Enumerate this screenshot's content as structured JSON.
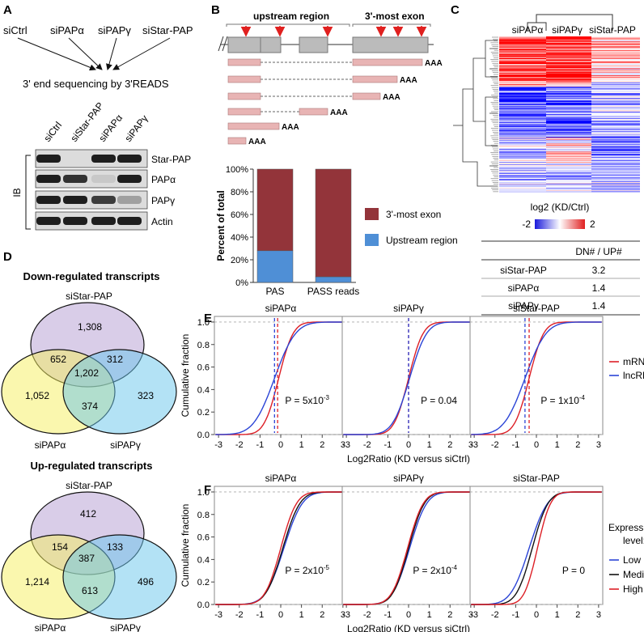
{
  "panels": {
    "A": "A",
    "B": "B",
    "C": "C",
    "D": "D",
    "E": "E",
    "F": "F"
  },
  "colors": {
    "red": "#dd1f26",
    "blue": "#2b44d6",
    "black": "#111111",
    "exon_dark": "#93343a",
    "upstream_blue": "#4f8fd6",
    "venn_purple": "#b9a4d6",
    "venn_yellow": "#faf59a",
    "venn_blue": "#8ed3ef",
    "pink_bar": "#e8b4b4",
    "gel_gray": "#888888"
  },
  "panel_a": {
    "conditions": [
      "siCtrl",
      "siPAPα",
      "siPAPγ",
      "siStar-PAP"
    ],
    "method": "3' end sequencing by 3'READS",
    "blot_lanes": [
      "siCtrl",
      "siStar-PAP",
      "siPAPα",
      "siPAPγ"
    ],
    "blot_rows": [
      "Star-PAP",
      "PAPα",
      "PAPγ",
      "Actin"
    ],
    "ib_label": "IB",
    "band_intensity": [
      [
        1,
        0.05,
        1,
        1
      ],
      [
        1,
        0.9,
        0.15,
        1
      ],
      [
        1,
        1,
        0.85,
        0.35
      ],
      [
        1,
        1,
        1,
        1
      ]
    ]
  },
  "panel_b": {
    "upstream_label": "upstream region",
    "exon_label": "3'-most exon",
    "polya": "AAA",
    "bar_chart": {
      "type": "bar",
      "stacked": true,
      "categories": [
        "PAS",
        "PASS reads"
      ],
      "ylabel": "Percent of total",
      "yticks": [
        "0%",
        "20%",
        "40%",
        "60%",
        "80%",
        "100%"
      ],
      "ylim": [
        0,
        100
      ],
      "series": [
        {
          "name": "Upstream region",
          "values": [
            28,
            5
          ]
        },
        {
          "name": "3'-most exon",
          "values": [
            72,
            95
          ]
        }
      ]
    }
  },
  "panel_c": {
    "columns": [
      "siPAPα",
      "siPAPγ",
      "siStar-PAP"
    ],
    "legend_title": "log2 (KD/Ctrl)",
    "legend_min": "-2",
    "legend_max": "2",
    "table_header": "DN# / UP#",
    "table_rows": [
      {
        "name": "siStar-PAP",
        "value": "3.2"
      },
      {
        "name": "siPAPα",
        "value": "1.4"
      },
      {
        "name": "siPAPγ",
        "value": "1.4"
      }
    ]
  },
  "panel_d": {
    "down": {
      "title": "Down-regulated transcripts",
      "top": "siStar-PAP",
      "left": "siPAPα",
      "right": "siPAPγ",
      "star_only": "1,308",
      "alpha_only": "1,052",
      "gamma_only": "323",
      "star_alpha": "652",
      "star_gamma": "312",
      "alpha_gamma": "374",
      "all": "1,202"
    },
    "up": {
      "title": "Up-regulated transcripts",
      "top": "siStar-PAP",
      "left": "siPAPα",
      "right": "siPAPγ",
      "star_only": "412",
      "alpha_only": "1,214",
      "gamma_only": "496",
      "star_alpha": "154",
      "star_gamma": "133",
      "alpha_gamma": "613",
      "all": "387"
    }
  },
  "chart_data": [
    {
      "type": "line",
      "panel": "E",
      "titles": [
        "siPAPα",
        "siPAPγ",
        "siStar-PAP"
      ],
      "xlabel": "Log2Ratio (KD versus siCtrl)",
      "ylabel": "Cumulative fraction",
      "xticks": [
        "-3",
        "-2",
        "-1",
        "0",
        "1",
        "2",
        "3"
      ],
      "yticks": [
        "0.0",
        "0.2",
        "0.4",
        "0.6",
        "0.8",
        "1.0"
      ],
      "xlim": [
        -3.2,
        3.2
      ],
      "ylim": [
        0,
        1.05
      ],
      "series": [
        {
          "name": "mRNA",
          "color": "red"
        },
        {
          "name": "lncRNA",
          "color": "blue"
        }
      ],
      "medians": [
        [
          -0.15,
          -0.3
        ],
        [
          0.0,
          0.0
        ],
        [
          -0.35,
          -0.55
        ]
      ],
      "center": [
        [
          -0.1,
          -0.3
        ],
        [
          0.0,
          0.05
        ],
        [
          -0.35,
          -0.55
        ]
      ],
      "spread": [
        [
          0.55,
          0.8
        ],
        [
          0.55,
          0.65
        ],
        [
          0.55,
          0.8
        ]
      ],
      "p_values": [
        "P = 5x10",
        "P = 0.04",
        "P = 1x10"
      ],
      "p_exponents": [
        "-3",
        "",
        "-4"
      ]
    },
    {
      "type": "line",
      "panel": "F",
      "titles": [
        "siPAPα",
        "siPAPγ",
        "siStar-PAP"
      ],
      "xlabel": "Log2Ratio (KD versus siCtrl)",
      "ylabel": "Cumulative fraction",
      "xticks": [
        "-3",
        "-2",
        "-1",
        "0",
        "1",
        "2",
        "3"
      ],
      "yticks": [
        "0.0",
        "0.2",
        "0.4",
        "0.6",
        "0.8",
        "1.0"
      ],
      "xlim": [
        -3.2,
        3.2
      ],
      "ylim": [
        0,
        1.05
      ],
      "legend_title": "Expression level:",
      "series": [
        {
          "name": "Low",
          "color": "blue"
        },
        {
          "name": "Median",
          "color": "black"
        },
        {
          "name": "High",
          "color": "red"
        }
      ],
      "center": [
        [
          0.15,
          0.1,
          0.0
        ],
        [
          0.05,
          0.0,
          -0.05
        ],
        [
          -0.35,
          -0.2,
          0.05
        ]
      ],
      "spread": [
        [
          0.7,
          0.65,
          0.6
        ],
        [
          0.65,
          0.6,
          0.6
        ],
        [
          0.7,
          0.6,
          0.5
        ]
      ],
      "p_values": [
        "P = 2x10",
        "P = 2x10",
        "P = 0"
      ],
      "p_exponents": [
        "-5",
        "-4",
        ""
      ]
    }
  ]
}
